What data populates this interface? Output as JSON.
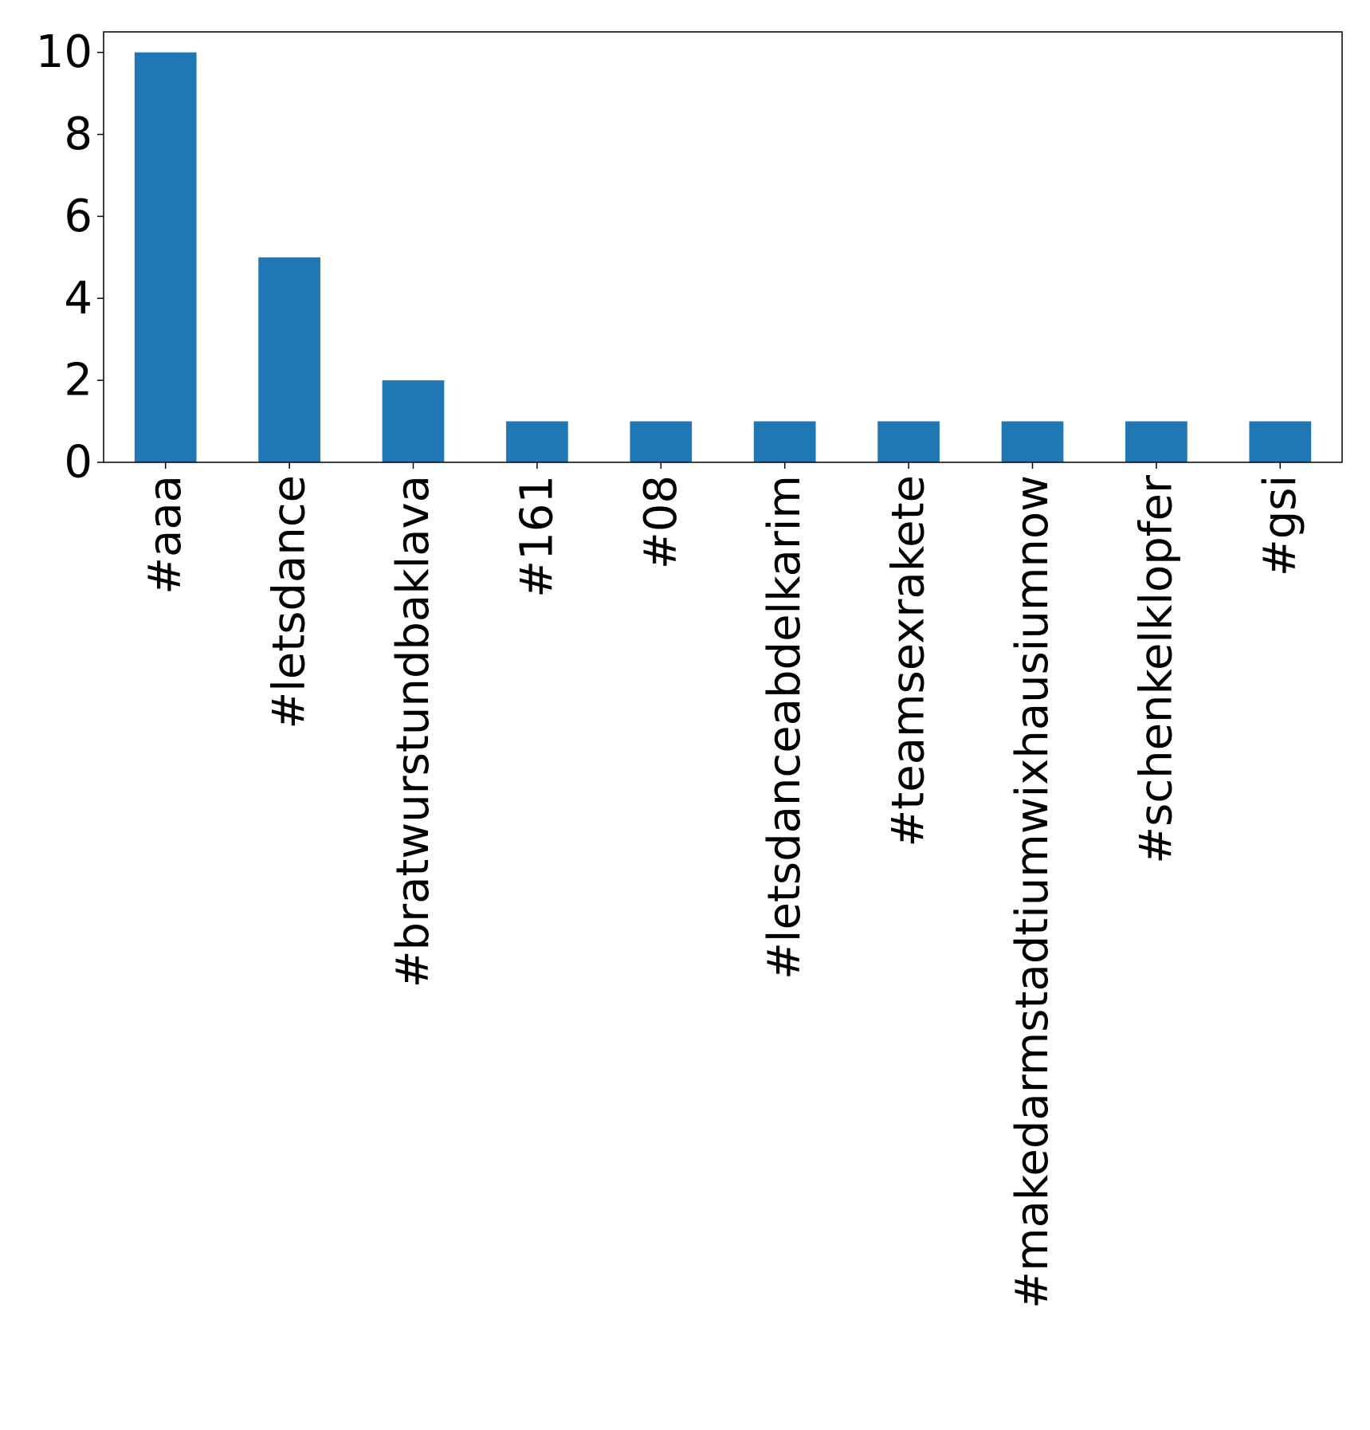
{
  "chart_data": {
    "type": "bar",
    "title": "",
    "xlabel": "",
    "ylabel": "",
    "categories": [
      "#aaa",
      "#letsdance",
      "#bratwurstundbaklava",
      "#161",
      "#08",
      "#letsdanceabdelkarim",
      "#teamsexrakete",
      "#makedarmstadtiumwixhausiumnow",
      "#schenkelklopfer",
      "#gsi"
    ],
    "values": [
      10,
      5,
      2,
      1,
      1,
      1,
      1,
      1,
      1,
      1
    ],
    "ylim": [
      0,
      10.5
    ],
    "yticks": [
      0,
      2,
      4,
      6,
      8,
      10
    ],
    "ytick_labels": [
      "0",
      "2",
      "4",
      "6",
      "8",
      "10"
    ],
    "bar_color": "#1f77b4",
    "grid": false,
    "legend": false
  }
}
